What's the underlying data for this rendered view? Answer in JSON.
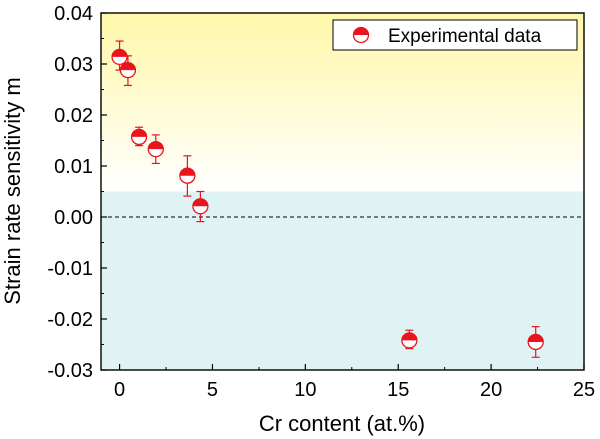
{
  "chart_data": {
    "type": "scatter",
    "title": "",
    "xlabel": "Cr content (at.%)",
    "ylabel": "Strain rate sensitivity m",
    "xlim": [
      -1,
      25
    ],
    "ylim": [
      -0.03,
      0.04
    ],
    "xticks": [
      0,
      5,
      10,
      15,
      20,
      25
    ],
    "xtick_labels": [
      "0",
      "5",
      "10",
      "15",
      "20",
      "25"
    ],
    "yticks": [
      -0.03,
      -0.02,
      -0.01,
      0.0,
      0.01,
      0.02,
      0.03,
      0.04
    ],
    "ytick_labels": [
      "-0.03",
      "-0.02",
      "-0.01",
      "0.00",
      "0.01",
      "0.02",
      "0.03",
      "0.04"
    ],
    "grid": false,
    "legend_position": "top-right",
    "reference_line": {
      "y": 0.0,
      "style": "dashed"
    },
    "background": {
      "upper": "#fff7a8",
      "lower": "#dff3f5"
    },
    "marker": {
      "style": "half-filled circle",
      "color": "#e8141e"
    },
    "series": [
      {
        "name": "Experimental data",
        "x": [
          0.0,
          0.45,
          1.05,
          1.95,
          3.65,
          4.35,
          15.6,
          22.4
        ],
        "y": [
          0.0314,
          0.0288,
          0.0157,
          0.0133,
          0.0081,
          0.0021,
          -0.0242,
          -0.0245
        ],
        "err_low": [
          0.0026,
          0.003,
          0.0017,
          0.0028,
          0.004,
          0.003,
          0.0016,
          0.003
        ],
        "err_high": [
          0.0031,
          0.0028,
          0.0019,
          0.0028,
          0.0039,
          0.0029,
          0.002,
          0.003
        ]
      }
    ]
  }
}
